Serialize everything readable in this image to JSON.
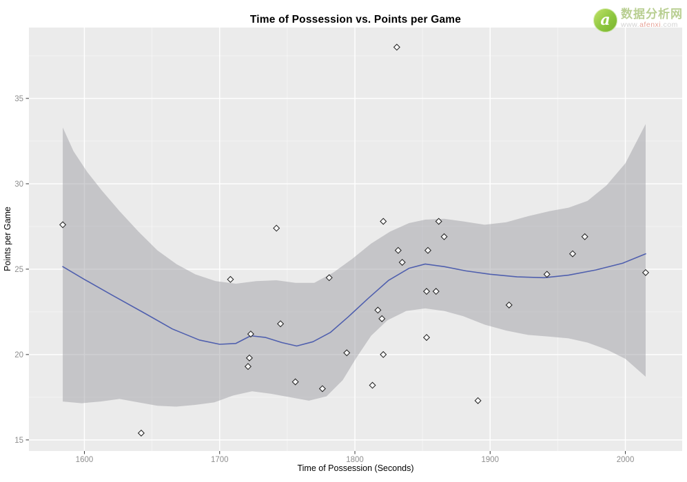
{
  "header": {
    "title": "Time of Possession vs. Points per Game"
  },
  "watermark": {
    "brand": "数据分析网",
    "url_prefix": "www.",
    "url_domain": "afenxi",
    "url_suffix": ".com",
    "logo_letter": "a",
    "logo_color": "#8dc63f"
  },
  "chart_data": {
    "type": "scatter",
    "title": "Time of Possession vs. Points per Game",
    "xlabel": "Time of Possession (Seconds)",
    "ylabel": "Points per Game",
    "xlim": [
      1559,
      2042
    ],
    "ylim": [
      14.35,
      39.15
    ],
    "x_ticks": [
      1600,
      1700,
      1800,
      1900,
      2000
    ],
    "x_minor_ticks": [
      1650,
      1750,
      1850,
      1950
    ],
    "y_ticks": [
      15,
      20,
      25,
      30,
      35
    ],
    "y_minor_ticks": [
      17.5,
      22.5,
      27.5,
      32.5,
      37.5
    ],
    "grid": "on",
    "legend": "none",
    "points": [
      [
        1584,
        27.6
      ],
      [
        1642,
        15.4
      ],
      [
        1708,
        24.4
      ],
      [
        1721,
        19.3
      ],
      [
        1722,
        19.8
      ],
      [
        1723,
        21.2
      ],
      [
        1742,
        27.4
      ],
      [
        1745,
        21.8
      ],
      [
        1756,
        18.4
      ],
      [
        1776,
        18.0
      ],
      [
        1781,
        24.5
      ],
      [
        1794,
        20.1
      ],
      [
        1813,
        18.2
      ],
      [
        1817,
        22.6
      ],
      [
        1820,
        22.1
      ],
      [
        1821,
        27.8
      ],
      [
        1821,
        20.0
      ],
      [
        1831,
        38.0
      ],
      [
        1832,
        26.1
      ],
      [
        1835,
        25.4
      ],
      [
        1853,
        21.0
      ],
      [
        1853,
        23.7
      ],
      [
        1854,
        26.1
      ],
      [
        1860,
        23.7
      ],
      [
        1862,
        27.8
      ],
      [
        1866,
        26.9
      ],
      [
        1891,
        17.3
      ],
      [
        1914,
        22.9
      ],
      [
        1942,
        24.7
      ],
      [
        1961,
        25.9
      ],
      [
        1970,
        26.9
      ],
      [
        2015,
        24.8
      ]
    ],
    "smooth_line": [
      [
        1584,
        25.15
      ],
      [
        1600,
        24.4
      ],
      [
        1620,
        23.5
      ],
      [
        1645,
        22.4
      ],
      [
        1665,
        21.5
      ],
      [
        1685,
        20.85
      ],
      [
        1700,
        20.6
      ],
      [
        1712,
        20.65
      ],
      [
        1723,
        21.1
      ],
      [
        1734,
        21.0
      ],
      [
        1746,
        20.7
      ],
      [
        1757,
        20.5
      ],
      [
        1769,
        20.75
      ],
      [
        1782,
        21.3
      ],
      [
        1795,
        22.2
      ],
      [
        1810,
        23.3
      ],
      [
        1825,
        24.35
      ],
      [
        1840,
        25.05
      ],
      [
        1852,
        25.3
      ],
      [
        1866,
        25.15
      ],
      [
        1882,
        24.9
      ],
      [
        1900,
        24.7
      ],
      [
        1920,
        24.55
      ],
      [
        1940,
        24.5
      ],
      [
        1958,
        24.65
      ],
      [
        1978,
        24.95
      ],
      [
        1998,
        25.35
      ],
      [
        2015,
        25.9
      ]
    ],
    "confidence_band": {
      "upper": [
        [
          1584,
          33.3
        ],
        [
          1592,
          31.9
        ],
        [
          1602,
          30.7
        ],
        [
          1613,
          29.6
        ],
        [
          1626,
          28.4
        ],
        [
          1640,
          27.2
        ],
        [
          1654,
          26.1
        ],
        [
          1668,
          25.3
        ],
        [
          1682,
          24.7
        ],
        [
          1697,
          24.3
        ],
        [
          1712,
          24.15
        ],
        [
          1727,
          24.3
        ],
        [
          1742,
          24.35
        ],
        [
          1756,
          24.2
        ],
        [
          1770,
          24.2
        ],
        [
          1784,
          24.8
        ],
        [
          1798,
          25.6
        ],
        [
          1812,
          26.5
        ],
        [
          1826,
          27.2
        ],
        [
          1840,
          27.7
        ],
        [
          1852,
          27.9
        ],
        [
          1866,
          27.95
        ],
        [
          1880,
          27.8
        ],
        [
          1896,
          27.6
        ],
        [
          1912,
          27.75
        ],
        [
          1928,
          28.1
        ],
        [
          1944,
          28.4
        ],
        [
          1958,
          28.6
        ],
        [
          1972,
          29.0
        ],
        [
          1986,
          29.9
        ],
        [
          2000,
          31.2
        ],
        [
          2015,
          33.5
        ]
      ],
      "lower": [
        [
          1584,
          17.25
        ],
        [
          1598,
          17.15
        ],
        [
          1612,
          17.25
        ],
        [
          1626,
          17.4
        ],
        [
          1640,
          17.2
        ],
        [
          1654,
          17.0
        ],
        [
          1668,
          16.95
        ],
        [
          1682,
          17.05
        ],
        [
          1696,
          17.2
        ],
        [
          1710,
          17.6
        ],
        [
          1724,
          17.85
        ],
        [
          1738,
          17.7
        ],
        [
          1752,
          17.5
        ],
        [
          1766,
          17.3
        ],
        [
          1779,
          17.55
        ],
        [
          1791,
          18.5
        ],
        [
          1801,
          19.8
        ],
        [
          1812,
          21.1
        ],
        [
          1824,
          22.0
        ],
        [
          1838,
          22.55
        ],
        [
          1852,
          22.7
        ],
        [
          1866,
          22.55
        ],
        [
          1880,
          22.25
        ],
        [
          1896,
          21.75
        ],
        [
          1912,
          21.4
        ],
        [
          1928,
          21.15
        ],
        [
          1944,
          21.05
        ],
        [
          1958,
          20.95
        ],
        [
          1972,
          20.7
        ],
        [
          1986,
          20.3
        ],
        [
          2000,
          19.75
        ],
        [
          2015,
          18.7
        ]
      ]
    },
    "style": {
      "panel_bg": "#ebebeb",
      "grid_major_color": "#ffffff",
      "grid_minor_color": "#ffffff",
      "band_fill": "#97979d",
      "band_opacity": 0.45,
      "line_color": "#4f5fae",
      "marker_shape": "open-diamond",
      "marker_stroke": "#1c1c1c",
      "marker_fill": "#ffffff",
      "tick_label_color": "#8e8e8e",
      "tick_mark_color": "#333333"
    }
  }
}
